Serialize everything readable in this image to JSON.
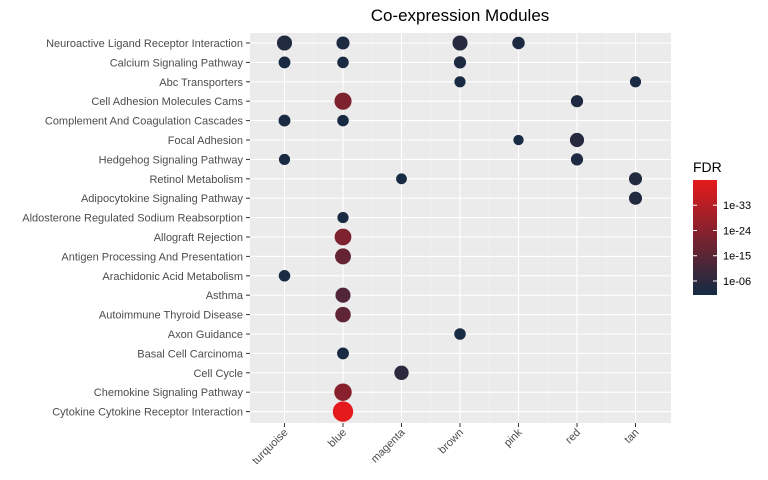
{
  "chart_data": {
    "type": "scatter",
    "title": "Co-expression Modules",
    "xlabel": "",
    "ylabel": "",
    "x_categories": [
      "turquoise",
      "blue",
      "magenta",
      "brown",
      "pink",
      "red",
      "tan"
    ],
    "y_categories": [
      "Neuroactive Ligand Receptor Interaction",
      "Calcium Signaling Pathway",
      "Abc Transporters",
      "Cell Adhesion Molecules Cams",
      "Complement And Coagulation Cascades",
      "Focal Adhesion",
      "Hedgehog Signaling Pathway",
      "Retinol Metabolism",
      "Adipocytokine Signaling Pathway",
      "Aldosterone Regulated Sodium Reabsorption",
      "Allograft Rejection",
      "Antigen Processing And Presentation",
      "Arachidonic Acid Metabolism",
      "Asthma",
      "Autoimmune Thyroid Disease",
      "Axon Guidance",
      "Basal Cell Carcinoma",
      "Cell Cycle",
      "Chemokine Signaling Pathway",
      "Cytokine Cytokine Receptor Interaction"
    ],
    "grid": true,
    "color_scale": {
      "title": "FDR",
      "log": true,
      "low_color": "#132B43",
      "high_color": "#E41A1C",
      "ticks": [
        "1e-33",
        "1e-24",
        "1e-15",
        "1e-06"
      ],
      "tick_exponents": [
        -33,
        -24,
        -15,
        -6
      ],
      "range_exponents": [
        -42,
        -1
      ]
    },
    "legend_position": "right",
    "points": [
      {
        "x": "turquoise",
        "y": "Neuroactive Ligand Receptor Interaction",
        "fdr_exp": -4,
        "count": 22
      },
      {
        "x": "blue",
        "y": "Neuroactive Ligand Receptor Interaction",
        "fdr_exp": -3,
        "count": 14
      },
      {
        "x": "brown",
        "y": "Neuroactive Ligand Receptor Interaction",
        "fdr_exp": -5,
        "count": 22
      },
      {
        "x": "pink",
        "y": "Neuroactive Ligand Receptor Interaction",
        "fdr_exp": -3,
        "count": 12
      },
      {
        "x": "turquoise",
        "y": "Calcium Signaling Pathway",
        "fdr_exp": -2,
        "count": 10
      },
      {
        "x": "blue",
        "y": "Calcium Signaling Pathway",
        "fdr_exp": -2,
        "count": 9
      },
      {
        "x": "brown",
        "y": "Calcium Signaling Pathway",
        "fdr_exp": -3,
        "count": 11
      },
      {
        "x": "brown",
        "y": "Abc Transporters",
        "fdr_exp": -2,
        "count": 8
      },
      {
        "x": "tan",
        "y": "Abc Transporters",
        "fdr_exp": -2,
        "count": 8
      },
      {
        "x": "blue",
        "y": "Cell Adhesion Molecules Cams",
        "fdr_exp": -22,
        "count": 32
      },
      {
        "x": "red",
        "y": "Cell Adhesion Molecules Cams",
        "fdr_exp": -3,
        "count": 11
      },
      {
        "x": "turquoise",
        "y": "Complement And Coagulation Cascades",
        "fdr_exp": -2,
        "count": 10
      },
      {
        "x": "blue",
        "y": "Complement And Coagulation Cascades",
        "fdr_exp": -2,
        "count": 9
      },
      {
        "x": "pink",
        "y": "Focal Adhesion",
        "fdr_exp": -2,
        "count": 6
      },
      {
        "x": "red",
        "y": "Focal Adhesion",
        "fdr_exp": -5,
        "count": 18
      },
      {
        "x": "turquoise",
        "y": "Hedgehog Signaling Pathway",
        "fdr_exp": -2,
        "count": 8
      },
      {
        "x": "red",
        "y": "Hedgehog Signaling Pathway",
        "fdr_exp": -3,
        "count": 11
      },
      {
        "x": "magenta",
        "y": "Retinol Metabolism",
        "fdr_exp": -2,
        "count": 7
      },
      {
        "x": "tan",
        "y": "Retinol Metabolism",
        "fdr_exp": -4,
        "count": 14
      },
      {
        "x": "tan",
        "y": "Adipocytokine Signaling Pathway",
        "fdr_exp": -4,
        "count": 14
      },
      {
        "x": "blue",
        "y": "Aldosterone Regulated Sodium Reabsorption",
        "fdr_exp": -2,
        "count": 8
      },
      {
        "x": "blue",
        "y": "Allograft Rejection",
        "fdr_exp": -22,
        "count": 30
      },
      {
        "x": "blue",
        "y": "Antigen Processing And Presentation",
        "fdr_exp": -17,
        "count": 26
      },
      {
        "x": "turquoise",
        "y": "Arachidonic Acid Metabolism",
        "fdr_exp": -2,
        "count": 9
      },
      {
        "x": "blue",
        "y": "Asthma",
        "fdr_exp": -13,
        "count": 22
      },
      {
        "x": "blue",
        "y": "Autoimmune Thyroid Disease",
        "fdr_exp": -16,
        "count": 24
      },
      {
        "x": "brown",
        "y": "Axon Guidance",
        "fdr_exp": -2,
        "count": 9
      },
      {
        "x": "blue",
        "y": "Basal Cell Carcinoma",
        "fdr_exp": -2,
        "count": 10
      },
      {
        "x": "magenta",
        "y": "Cell Cycle",
        "fdr_exp": -6,
        "count": 19
      },
      {
        "x": "blue",
        "y": "Chemokine Signaling Pathway",
        "fdr_exp": -24,
        "count": 34
      },
      {
        "x": "blue",
        "y": "Cytokine Cytokine Receptor Interaction",
        "fdr_exp": -42,
        "count": 52
      }
    ]
  }
}
